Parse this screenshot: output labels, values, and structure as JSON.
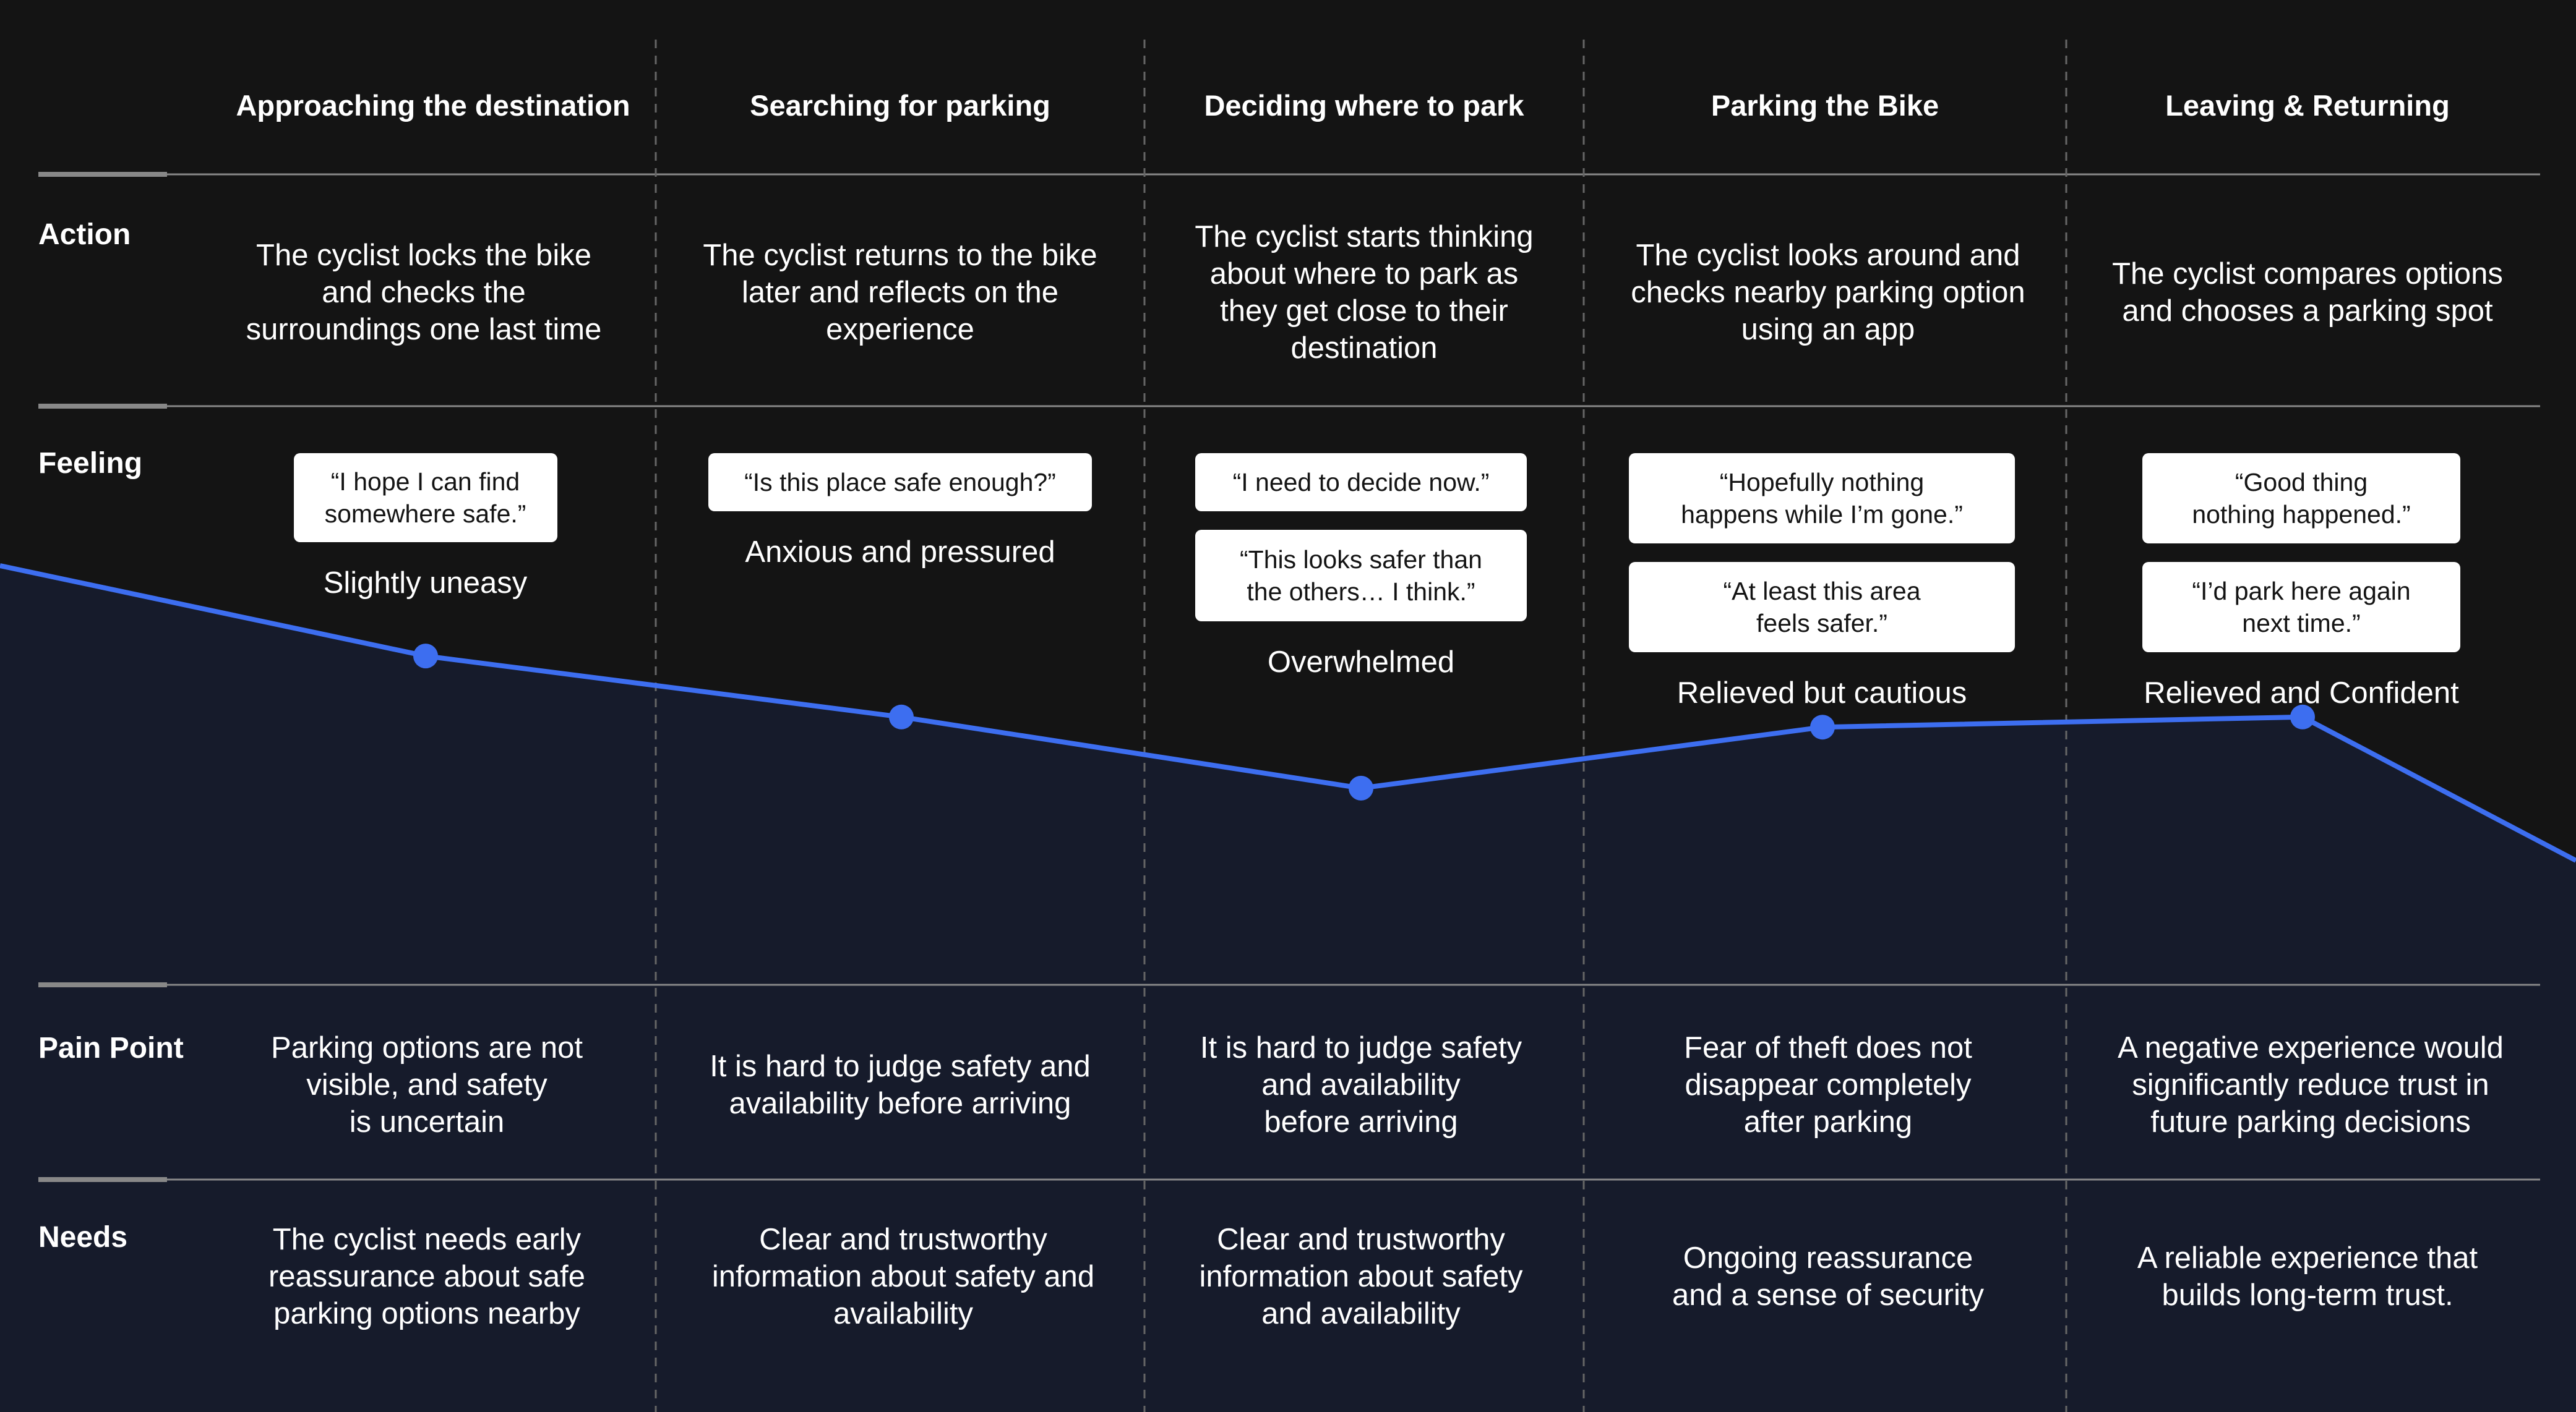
{
  "stages": [
    "Approaching the\ndestination",
    "Searching for parking",
    "Deciding where to park",
    "Parking the Bike",
    "Leaving & Returning"
  ],
  "rows": {
    "action": "Action",
    "feeling": "Feeling",
    "pain_point": "Pain Point",
    "needs": "Needs"
  },
  "actions": [
    "The cyclist locks the bike\nand checks the\nsurroundings one last time",
    "The cyclist returns to the bike\nlater and reflects on the\nexperience",
    "The cyclist starts thinking\nabout where to park as\nthey get close to their\ndestination",
    "The cyclist looks around and\nchecks nearby parking option\nusing an app",
    "The cyclist compares options\nand chooses a parking spot"
  ],
  "feelings": [
    {
      "quotes": [
        "“I hope I can find\nsomewhere safe.”"
      ],
      "label": "Slightly uneasy",
      "level": 0.4
    },
    {
      "quotes": [
        "“Is this place safe enough?”"
      ],
      "label": "Anxious and pressured",
      "level": 0.28
    },
    {
      "quotes": [
        "“I need to decide now.”",
        "“This looks safer than\nthe others… I think.”"
      ],
      "label": "Overwhelmed",
      "level": 0.14
    },
    {
      "quotes": [
        "“Hopefully nothing\nhappens while I’m gone.”",
        "“At least this area\nfeels safer.”"
      ],
      "label": "Relieved but cautious",
      "level": 0.26
    },
    {
      "quotes": [
        "“Good thing\nnothing happened.”",
        "“I’d park here again\nnext time.”"
      ],
      "label": "Relieved and Confident",
      "level": 0.28
    }
  ],
  "pain_points": [
    "Parking options are not\nvisible, and safety\nis uncertain",
    "It is hard to judge safety and\navailability before arriving",
    "It is hard to judge safety\nand availability\nbefore arriving",
    "Fear of theft does not\ndisappear completely\nafter parking",
    "A negative experience would\nsignificantly reduce trust in\nfuture parking decisions"
  ],
  "needs": [
    "The cyclist needs early\nreassurance about safe\nparking options nearby",
    "Clear and trustworthy\ninformation about safety and\navailability",
    "Clear and trustworthy\ninformation about safety\nand availability",
    "Ongoing reassurance\nand a sense of security",
    "A reliable experience that\nbuilds long-term trust."
  ],
  "colors": {
    "background": "#141414",
    "curve_area": "#161b2b",
    "curve_line": "#3d6ef0",
    "divider": "#888888"
  }
}
